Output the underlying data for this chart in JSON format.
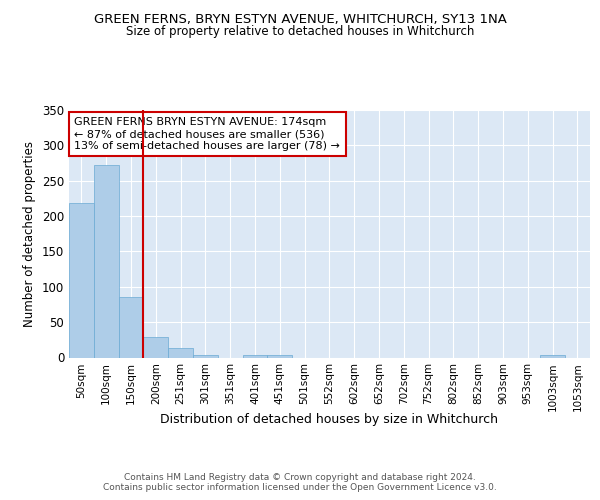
{
  "title": "GREEN FERNS, BRYN ESTYN AVENUE, WHITCHURCH, SY13 1NA",
  "subtitle": "Size of property relative to detached houses in Whitchurch",
  "xlabel": "Distribution of detached houses by size in Whitchurch",
  "ylabel": "Number of detached properties",
  "bar_color": "#aecde8",
  "bar_edge_color": "#6aaad4",
  "background_color": "#dce8f5",
  "grid_color": "#ffffff",
  "annotation_text": "GREEN FERNS BRYN ESTYN AVENUE: 174sqm\n← 87% of detached houses are smaller (536)\n13% of semi-detached houses are larger (78) →",
  "annotation_box_color": "#ffffff",
  "annotation_box_edge": "#cc0000",
  "footer_line1": "Contains HM Land Registry data © Crown copyright and database right 2024.",
  "footer_line2": "Contains public sector information licensed under the Open Government Licence v3.0.",
  "categories": [
    "50sqm",
    "100sqm",
    "150sqm",
    "200sqm",
    "251sqm",
    "301sqm",
    "351sqm",
    "401sqm",
    "451sqm",
    "501sqm",
    "552sqm",
    "602sqm",
    "652sqm",
    "702sqm",
    "752sqm",
    "802sqm",
    "852sqm",
    "903sqm",
    "953sqm",
    "1003sqm",
    "1053sqm"
  ],
  "values": [
    218,
    272,
    85,
    29,
    13,
    4,
    0,
    4,
    4,
    0,
    0,
    0,
    0,
    0,
    0,
    0,
    0,
    0,
    0,
    3,
    0
  ],
  "ylim": [
    0,
    350
  ],
  "yticks": [
    0,
    50,
    100,
    150,
    200,
    250,
    300,
    350
  ]
}
